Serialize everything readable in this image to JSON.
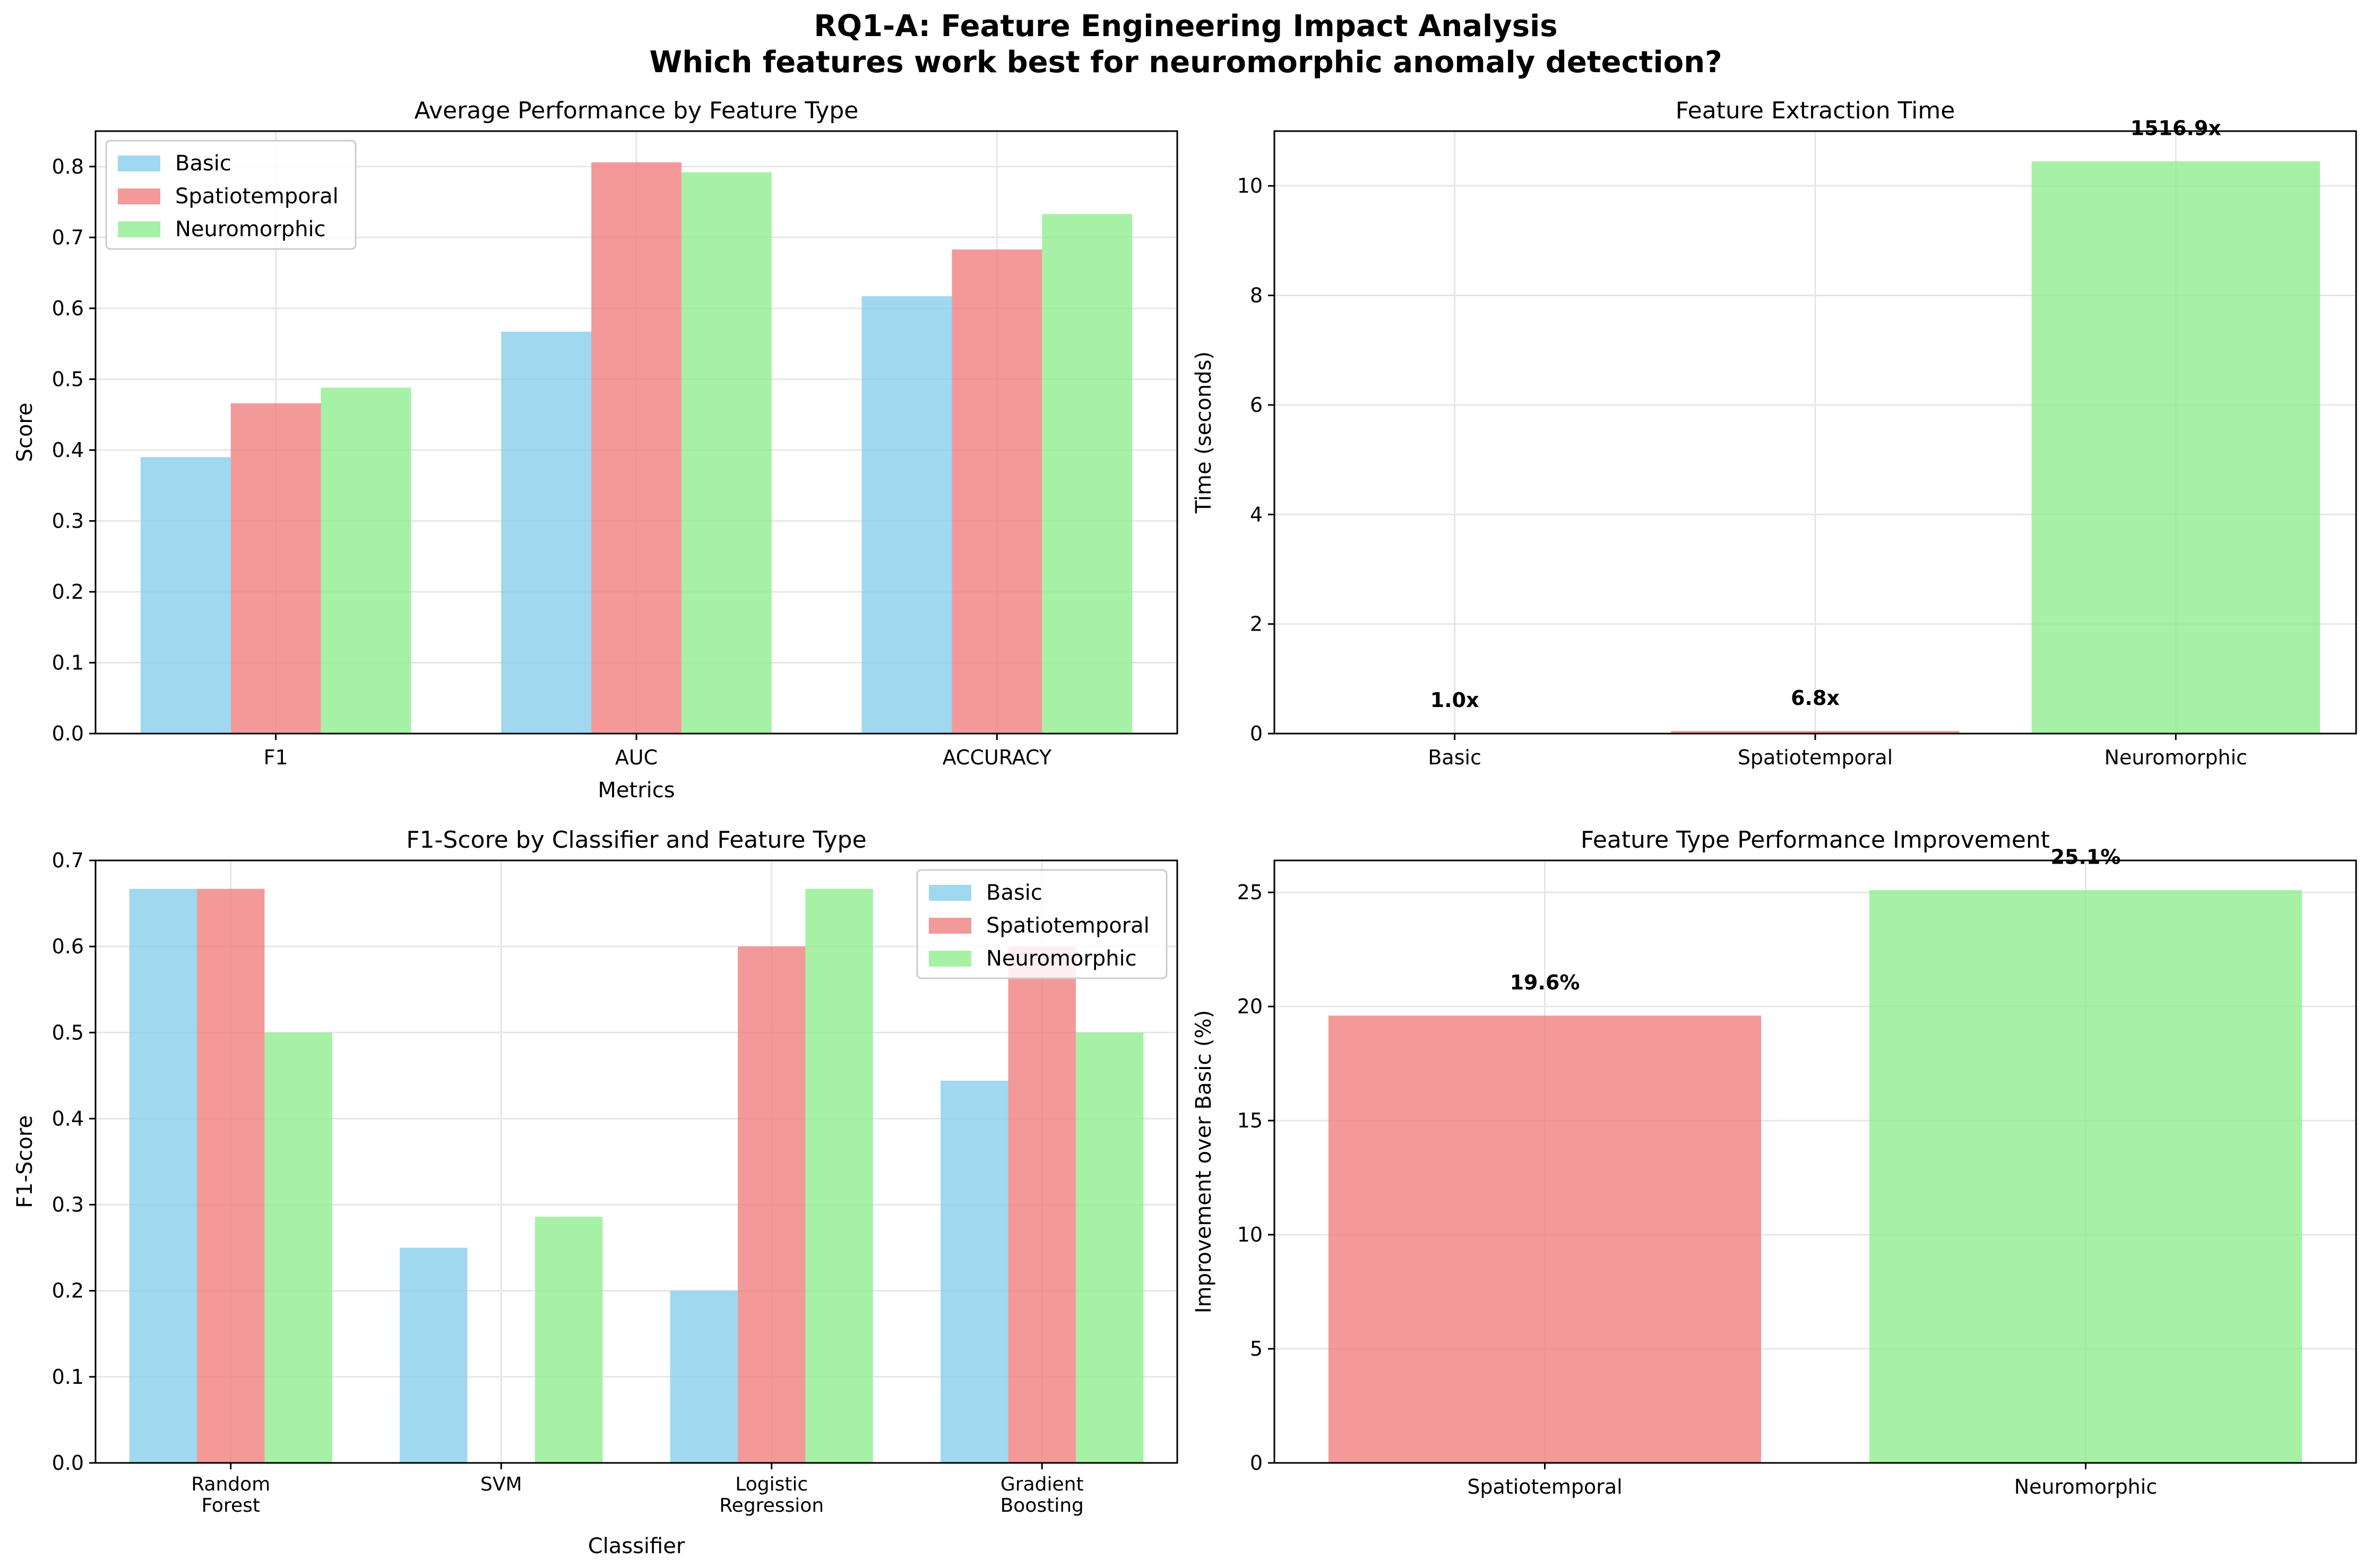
{
  "figure": {
    "title_line1": "RQ1-A: Feature Engineering Impact Analysis",
    "title_line2": "Which features work best for neuromorphic anomaly detection?"
  },
  "colors": {
    "Basic": "#87ceeb",
    "Spatiotemporal": "#f08080",
    "Neuromorphic": "#90ee90",
    "grid": "#e6e6e6"
  },
  "chart_data": [
    {
      "id": "avg-performance",
      "type": "bar",
      "title": "Average Performance by Feature Type",
      "xlabel": "Metrics",
      "ylabel": "Score",
      "categories": [
        "F1",
        "AUC",
        "ACCURACY"
      ],
      "series": [
        {
          "name": "Basic",
          "values": [
            0.39,
            0.567,
            0.617
          ]
        },
        {
          "name": "Spatiotemporal",
          "values": [
            0.466,
            0.806,
            0.683
          ]
        },
        {
          "name": "Neuromorphic",
          "values": [
            0.488,
            0.792,
            0.733
          ]
        }
      ],
      "ylim": [
        0,
        0.85
      ],
      "yticks": [
        0.0,
        0.1,
        0.2,
        0.3,
        0.4,
        0.5,
        0.6,
        0.7,
        0.8
      ],
      "ytick_labels": [
        "0.0",
        "0.1",
        "0.2",
        "0.3",
        "0.4",
        "0.5",
        "0.6",
        "0.7",
        "0.8"
      ],
      "grid": true,
      "legend": "upper-left"
    },
    {
      "id": "extraction-time",
      "type": "bar",
      "title": "Feature Extraction Time",
      "xlabel": "",
      "ylabel": "Time (seconds)",
      "categories": [
        "Basic",
        "Spatiotemporal",
        "Neuromorphic"
      ],
      "values": [
        0.0069,
        0.047,
        10.45
      ],
      "bar_labels": [
        "1.0x",
        "6.8x",
        "1516.9x"
      ],
      "ylim": [
        0,
        11
      ],
      "yticks": [
        0,
        2,
        4,
        6,
        8,
        10
      ],
      "ytick_labels": [
        "0",
        "2",
        "4",
        "6",
        "8",
        "10"
      ],
      "grid": true
    },
    {
      "id": "f1-by-classifier",
      "type": "bar",
      "title": "F1-Score by Classifier and Feature Type",
      "xlabel": "Classifier",
      "ylabel": "F1-Score",
      "categories": [
        [
          "Random",
          "Forest"
        ],
        [
          "SVM"
        ],
        [
          "Logistic",
          "Regression"
        ],
        [
          "Gradient",
          "Boosting"
        ]
      ],
      "series": [
        {
          "name": "Basic",
          "values": [
            0.667,
            0.25,
            0.2,
            0.444
          ]
        },
        {
          "name": "Spatiotemporal",
          "values": [
            0.667,
            0.0,
            0.6,
            0.6
          ]
        },
        {
          "name": "Neuromorphic",
          "values": [
            0.5,
            0.286,
            0.667,
            0.5
          ]
        }
      ],
      "ylim": [
        0,
        0.7
      ],
      "yticks": [
        0.0,
        0.1,
        0.2,
        0.3,
        0.4,
        0.5,
        0.6,
        0.7
      ],
      "ytick_labels": [
        "0.0",
        "0.1",
        "0.2",
        "0.3",
        "0.4",
        "0.5",
        "0.6",
        "0.7"
      ],
      "grid": true,
      "legend": "upper-right"
    },
    {
      "id": "improvement",
      "type": "bar",
      "title": "Feature Type Performance Improvement",
      "xlabel": "",
      "ylabel": "Improvement over Basic (%)",
      "categories": [
        "Spatiotemporal",
        "Neuromorphic"
      ],
      "values": [
        19.6,
        25.1
      ],
      "bar_labels": [
        "19.6%",
        "25.1%"
      ],
      "ylim": [
        0,
        26.4
      ],
      "yticks": [
        0,
        5,
        10,
        15,
        20,
        25
      ],
      "ytick_labels": [
        "0",
        "5",
        "10",
        "15",
        "20",
        "25"
      ],
      "grid": true
    }
  ]
}
